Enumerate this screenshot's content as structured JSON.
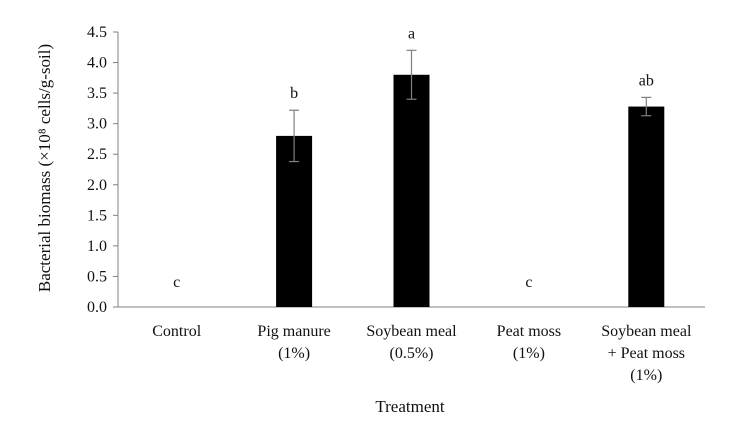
{
  "chart_data": {
    "type": "bar",
    "title": "",
    "xlabel": "Treatment",
    "ylabel": "Bacterial biomass (×10⁸ cells/g-soil)",
    "ylim": [
      0,
      4.5
    ],
    "y_ticks": [
      "0.0",
      "0.5",
      "1.0",
      "1.5",
      "2.0",
      "2.5",
      "3.0",
      "3.5",
      "4.0",
      "4.5"
    ],
    "grid": false,
    "legend": "none",
    "categories": [
      [
        "Control"
      ],
      [
        "Pig manure",
        "(1%)"
      ],
      [
        "Soybean meal",
        "(0.5%)"
      ],
      [
        "Peat moss",
        "(1%)"
      ],
      [
        "Soybean meal",
        "+ Peat moss",
        "(1%)"
      ]
    ],
    "values": [
      0,
      2.8,
      3.8,
      0,
      3.28
    ],
    "errors": [
      0,
      0.42,
      0.4,
      0,
      0.15
    ],
    "significance": [
      "c",
      "b",
      "a",
      "c",
      "ab"
    ],
    "colors": {
      "bar": "#000000",
      "axis": "#808080",
      "error_bar": "#808080"
    }
  }
}
